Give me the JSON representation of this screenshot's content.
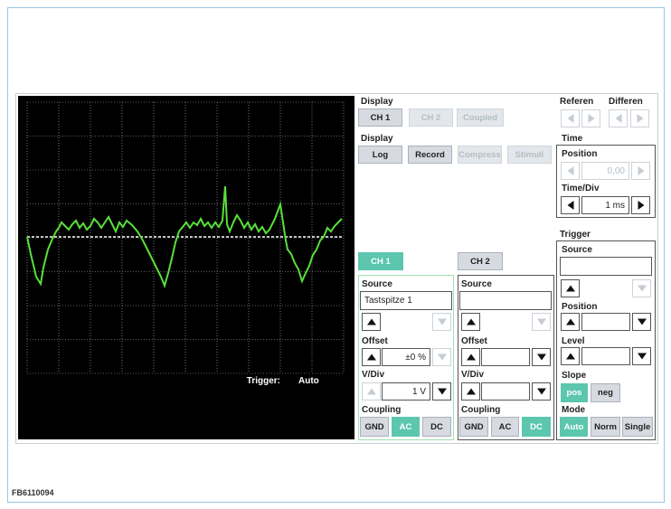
{
  "scope": {
    "trigger_label": "Trigger:",
    "trigger_mode": "Auto"
  },
  "display_1": {
    "label": "Display",
    "buttons": [
      "CH 1",
      "CH 2",
      "Coupled"
    ]
  },
  "display_2": {
    "label": "Display",
    "buttons": [
      "Log",
      "Record",
      "Compress",
      "Stimuli"
    ]
  },
  "reference": {
    "label": "Referen"
  },
  "difference": {
    "label": "Differen"
  },
  "time": {
    "label": "Time",
    "position_label": "Position",
    "position_value": "0,00",
    "time_div_label": "Time/Div",
    "time_div_value": "1 ms"
  },
  "channel_tabs": [
    "CH 1",
    "CH 2"
  ],
  "ch1": {
    "source_label": "Source",
    "source_value": "Tastspitze 1",
    "offset_label": "Offset",
    "offset_value": "±0 %",
    "vdiv_label": "V/Div",
    "vdiv_value": "1 V",
    "coupling_label": "Coupling",
    "coupling_buttons": [
      "GND",
      "AC",
      "DC"
    ]
  },
  "ch2": {
    "source_label": "Source",
    "offset_label": "Offset",
    "vdiv_label": "V/Div",
    "coupling_label": "Coupling",
    "coupling_buttons": [
      "GND",
      "AC",
      "DC"
    ]
  },
  "trigger": {
    "label": "Trigger",
    "source_label": "Source",
    "position_label": "Position",
    "level_label": "Level",
    "slope_label": "Slope",
    "slope_buttons": [
      "pos",
      "neg"
    ],
    "mode_label": "Mode",
    "mode_buttons": [
      "Auto",
      "Norm",
      "Single"
    ]
  },
  "footer": {
    "code": "FB6110094"
  }
}
